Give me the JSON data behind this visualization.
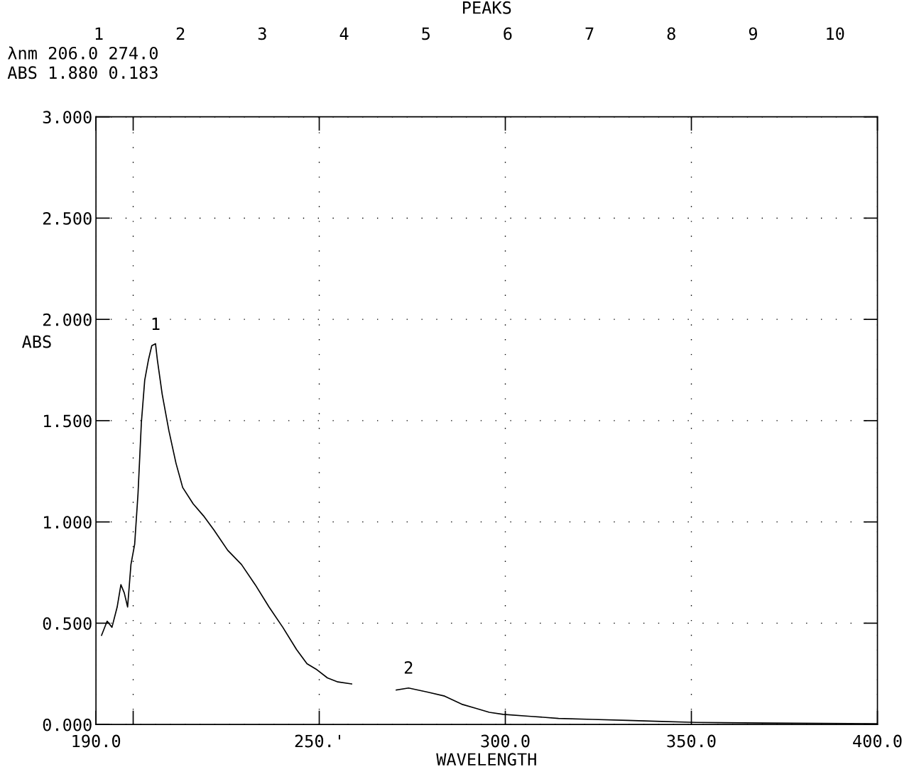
{
  "chart_data": {
    "type": "line",
    "title": "PEAKS",
    "xlabel": "WAVELENGTH",
    "ylabel": "ABS",
    "annotations": [
      "1 2 3 4 5 6 7 8 9 10",
      "λnm 206.0 274.0",
      "ABS 1.880 0.183",
      {
        "text": "1",
        "x": 206,
        "y": 1.88
      },
      {
        "text": "2",
        "x": 274,
        "y": 0.183
      }
    ],
    "xlim": [
      190,
      400
    ],
    "xticks": [
      {
        "value": 190,
        "label": "190.0"
      },
      {
        "value": 200,
        "label": null
      },
      {
        "value": 250,
        "label": "250.'"
      },
      {
        "value": 300,
        "label": "300.0"
      },
      {
        "value": 350,
        "label": "350.0"
      },
      {
        "value": 400,
        "label": "400.0"
      }
    ],
    "ylim": [
      0,
      3
    ],
    "yticks": [
      {
        "value": 0,
        "label": "0.000"
      },
      {
        "value": 0.5,
        "label": "0.500"
      },
      {
        "value": 1,
        "label": "1.000"
      },
      {
        "value": 1.5,
        "label": "1.500"
      },
      {
        "value": 2,
        "label": "2.000"
      },
      {
        "value": 2.5,
        "label": "2.500"
      },
      {
        "value": 3,
        "label": "3.000"
      }
    ],
    "grid": true,
    "legend": false,
    "x": [
      191.5,
      193.0,
      194.3,
      195.7,
      196.7,
      197.6,
      198.5,
      199.4,
      200.4,
      201.3,
      202.2,
      203.1,
      204.1,
      205.0,
      206.0,
      206.5,
      207.8,
      209.6,
      211.5,
      213.3,
      216.1,
      218.9,
      221.7,
      225.4,
      229.1,
      232.8,
      236.5,
      240.2,
      243.9,
      246.7,
      249.4,
      252.2,
      255.0,
      258.7,
      264.0,
      270.7,
      274.0,
      279.1,
      283.7,
      288.3,
      292.0,
      295.7,
      299.4,
      306.9,
      314.3,
      323.5,
      332.8,
      342.0,
      351.3,
      369.8,
      400.0
    ],
    "series": [
      {
        "color": "#000000",
        "values": [
          0.44,
          0.51,
          0.48,
          0.58,
          0.69,
          0.65,
          0.58,
          0.79,
          0.89,
          1.14,
          1.49,
          1.7,
          1.8,
          1.87,
          1.88,
          1.8,
          1.63,
          1.45,
          1.29,
          1.17,
          1.09,
          1.03,
          0.96,
          0.86,
          0.79,
          0.69,
          0.58,
          0.48,
          0.37,
          0.3,
          0.27,
          0.23,
          0.21,
          0.2,
          null,
          0.17,
          0.18,
          0.16,
          0.14,
          0.1,
          0.08,
          0.06,
          0.05,
          0.04,
          0.03,
          0.025,
          0.02,
          0.015,
          0.01,
          0.007,
          0.004
        ]
      }
    ]
  }
}
